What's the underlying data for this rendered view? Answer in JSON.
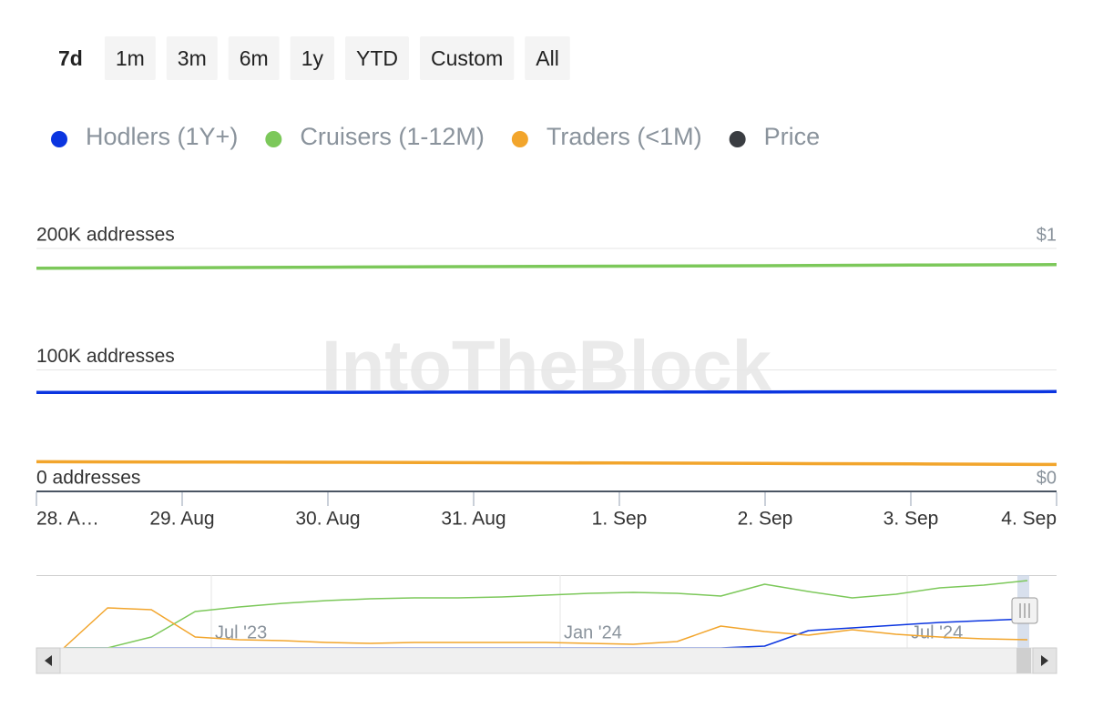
{
  "range_buttons": [
    "7d",
    "1m",
    "3m",
    "6m",
    "1y",
    "YTD",
    "Custom",
    "All"
  ],
  "active_button": 0,
  "watermark": "IntoTheBlock",
  "chart_data": {
    "type": "line",
    "categories": [
      "28. A…",
      "29. Aug",
      "30. Aug",
      "31. Aug",
      "1. Sep",
      "2. Sep",
      "3. Sep",
      "4. Sep"
    ],
    "series": [
      {
        "name": "Hodlers (1Y+)",
        "color": "#0b35e0",
        "values": [
          81500,
          81500,
          81600,
          81700,
          81800,
          81900,
          82000,
          82200
        ]
      },
      {
        "name": "Cruisers (1-12M)",
        "color": "#7cc85a",
        "values": [
          183700,
          184100,
          184600,
          185000,
          185400,
          185800,
          186300,
          186700
        ]
      },
      {
        "name": "Traders (<1M)",
        "color": "#f2a52c",
        "values": [
          24400,
          24200,
          24000,
          23700,
          23400,
          23000,
          22600,
          22200
        ]
      },
      {
        "name": "Price",
        "color": "#3a3d42",
        "axis": "y2",
        "values": [
          null,
          null,
          null,
          null,
          null,
          null,
          null,
          null
        ]
      }
    ],
    "ylim": [
      0,
      200000
    ],
    "yticks": [
      {
        "value": 0,
        "label": "0 addresses"
      },
      {
        "value": 100000,
        "label": "100K addresses"
      },
      {
        "value": 200000,
        "label": "200K addresses"
      }
    ],
    "y2lim": [
      0,
      1
    ],
    "y2ticks": [
      {
        "value": 0,
        "label": "$0"
      },
      {
        "value": 1,
        "label": "$1"
      }
    ],
    "grid": true,
    "legend": "top",
    "navigator": {
      "labels": [
        "Jul '23",
        "Jan '24",
        "Jul '24"
      ],
      "series": [
        {
          "name": "Hodlers (1Y+)",
          "color": "#0b35e0",
          "values": [
            0,
            0,
            0,
            0,
            0,
            0,
            0,
            0,
            0,
            0,
            0,
            0,
            0,
            0,
            0,
            0,
            5000,
            47500,
            55000,
            62500,
            70000,
            75000,
            80000
          ]
        },
        {
          "name": "Cruisers (1-12M)",
          "color": "#7cc85a",
          "values": [
            0,
            0,
            30000,
            100000,
            112500,
            122500,
            130000,
            135000,
            137500,
            137500,
            140000,
            145000,
            150000,
            152500,
            150000,
            142500,
            175000,
            155000,
            137500,
            147500,
            165000,
            172500,
            185000
          ]
        },
        {
          "name": "Traders (<1M)",
          "color": "#f2a52c",
          "values": [
            0,
            110000,
            105000,
            30000,
            22500,
            20000,
            15000,
            12500,
            15000,
            15000,
            15000,
            15000,
            12500,
            10000,
            17500,
            60000,
            45000,
            35000,
            50000,
            37500,
            30000,
            25000,
            22500
          ]
        }
      ]
    }
  }
}
